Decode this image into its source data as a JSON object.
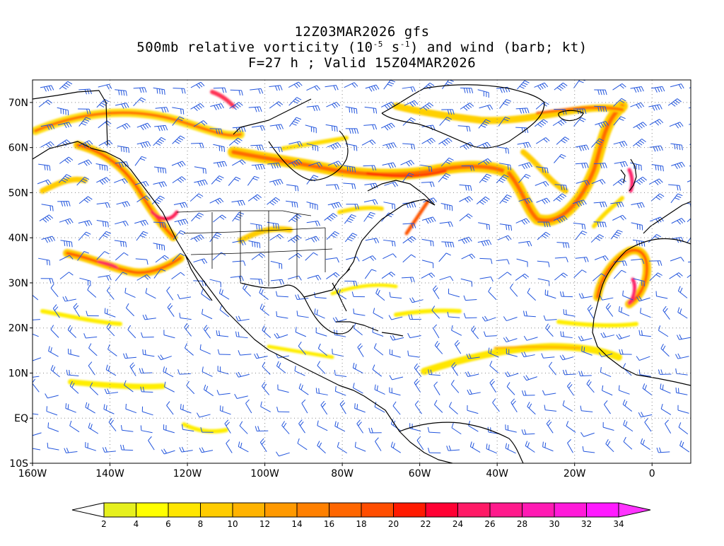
{
  "header": {
    "line1": "12Z03MAR2026 gfs",
    "line2_pre": "500mb relative vorticity (10",
    "line2_exp1": "-5",
    "line2_mid": " s",
    "line2_exp2": "-1",
    "line2_post": ") and wind (barb; kt)",
    "line3": "F=27 h ; Valid 15Z04MAR2026"
  },
  "map": {
    "lon_range": [
      -160,
      10
    ],
    "lat_range": [
      -10,
      75
    ],
    "lat_labels": [
      "70N",
      "60N",
      "50N",
      "40N",
      "30N",
      "20N",
      "10N",
      "EQ",
      "10S"
    ],
    "lon_labels": [
      "160W",
      "140W",
      "120W",
      "100W",
      "80W",
      "60W",
      "40W",
      "20W",
      "0"
    ],
    "wind_barb_color": "#2255dd",
    "coastline_color": "#000000"
  },
  "colorbar": {
    "labels": [
      "2",
      "4",
      "6",
      "8",
      "10",
      "12",
      "14",
      "16",
      "18",
      "20",
      "22",
      "24",
      "26",
      "28",
      "30",
      "32",
      "34"
    ],
    "colors": [
      "#e6f01e",
      "#ffff00",
      "#ffe600",
      "#ffcc00",
      "#ffb300",
      "#ff9900",
      "#ff8000",
      "#ff6600",
      "#ff4d00",
      "#ff1a00",
      "#ff0033",
      "#ff1a66",
      "#ff1a8c",
      "#ff1ab3",
      "#ff1ad9",
      "#ff1aff"
    ],
    "under_color": "#ffffff",
    "over_color": "#ff33ff"
  }
}
